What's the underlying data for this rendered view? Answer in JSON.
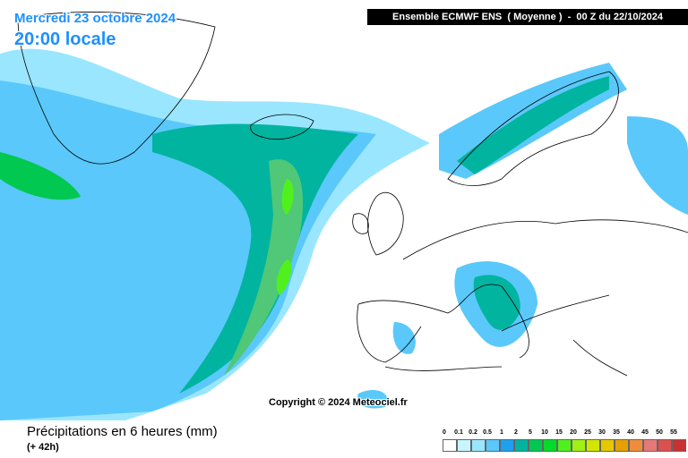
{
  "header": {
    "date": "Mercredi 23 octobre 2024",
    "time": "20:00 locale",
    "model": "Ensemble ECMWF ENS  ( Moyenne )  -  00 Z du 22/10/2024"
  },
  "copyright": "Copyright © 2024 Meteociel.fr",
  "footer": {
    "title": "Précipitations en 6 heures (mm)",
    "lead": "(+ 42h)"
  },
  "legend": {
    "levels": [
      "0",
      "0.1",
      "0.2",
      "0.5",
      "1",
      "2",
      "5",
      "10",
      "15",
      "20",
      "25",
      "30",
      "35",
      "40",
      "45",
      "50",
      "55"
    ],
    "colors": [
      "#ffffff",
      "#c8f5ff",
      "#9ae6ff",
      "#5ac8fa",
      "#1ea0f0",
      "#00b4a0",
      "#00c850",
      "#00dc28",
      "#50f01e",
      "#a0f014",
      "#d2e600",
      "#e6c800",
      "#e6a000",
      "#f08c3c",
      "#e67878",
      "#dc5050",
      "#c83232"
    ]
  }
}
